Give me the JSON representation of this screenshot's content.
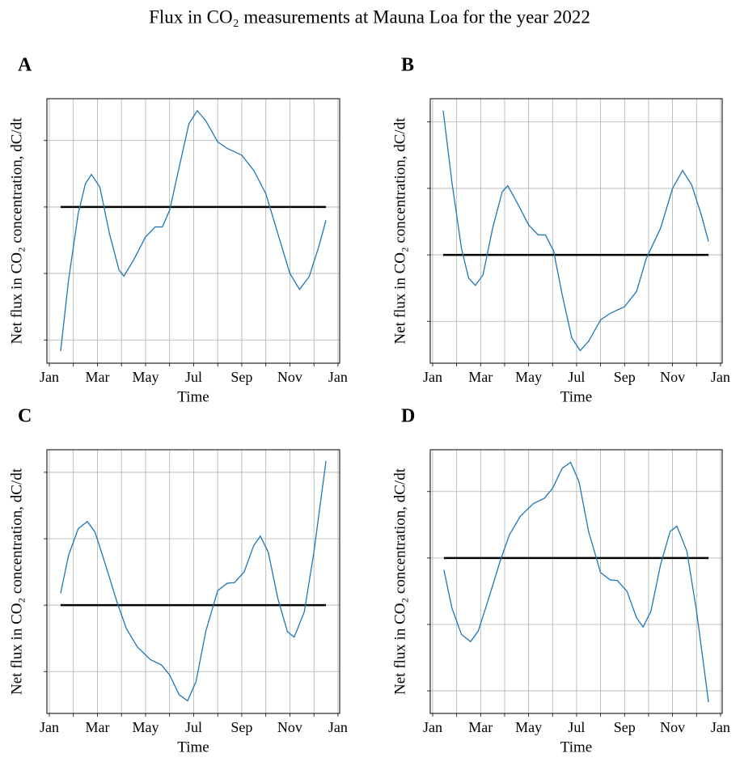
{
  "title": "Flux in CO₂ measurements at Mauna Loa for the year 2022",
  "chart_data": [
    {
      "type": "line",
      "panel": "A",
      "xlabel": "Time",
      "ylabel": "Net flux in CO₂ concentration, dC/dt",
      "xlim": [
        -0.1,
        12.07
      ],
      "ylim": [
        -2.35,
        1.63
      ],
      "yticks": [
        -2,
        -1,
        0,
        1
      ],
      "yticklabels": false,
      "grid": true,
      "xticks": [
        {
          "value": 0,
          "label": "Jan"
        },
        {
          "value": 1,
          "label": null
        },
        {
          "value": 2,
          "label": "Mar"
        },
        {
          "value": 3,
          "label": null
        },
        {
          "value": 4,
          "label": "May"
        },
        {
          "value": 5,
          "label": null
        },
        {
          "value": 6,
          "label": "Jul"
        },
        {
          "value": 7,
          "label": null
        },
        {
          "value": 8,
          "label": "Sep"
        },
        {
          "value": 9,
          "label": null
        },
        {
          "value": 10,
          "label": "Nov"
        },
        {
          "value": 11,
          "label": null
        },
        {
          "value": 12,
          "label": "Jan"
        }
      ],
      "hline": {
        "value": 0,
        "color": "#000000"
      },
      "x": [
        0.47,
        0.8,
        1.2,
        1.5,
        1.75,
        2.1,
        2.5,
        2.9,
        3.1,
        3.5,
        4.0,
        4.4,
        4.7,
        5.0,
        5.4,
        5.8,
        6.15,
        6.5,
        7.0,
        7.4,
        8.0,
        8.5,
        9.0,
        9.5,
        10.0,
        10.4,
        10.8,
        11.2,
        11.5
      ],
      "series": [
        {
          "color": "#1f77b4",
          "values": [
            -2.17,
            -1.1,
            -0.1,
            0.35,
            0.49,
            0.3,
            -0.4,
            -0.95,
            -1.04,
            -0.8,
            -0.45,
            -0.3,
            -0.3,
            -0.05,
            0.6,
            1.25,
            1.45,
            1.3,
            0.98,
            0.88,
            0.78,
            0.55,
            0.2,
            -0.4,
            -1.0,
            -1.24,
            -1.05,
            -0.6,
            -0.2
          ]
        }
      ]
    },
    {
      "type": "line",
      "panel": "B",
      "xlabel": "Time",
      "ylabel": "Net flux in CO₂ concentration, dC/dt",
      "xlim": [
        -0.1,
        12.07
      ],
      "ylim": [
        -1.63,
        2.35
      ],
      "yticks": [
        -1,
        0,
        1,
        2
      ],
      "yticklabels": false,
      "grid": true,
      "xticks": [
        {
          "value": 0,
          "label": "Jan"
        },
        {
          "value": 1,
          "label": null
        },
        {
          "value": 2,
          "label": "Mar"
        },
        {
          "value": 3,
          "label": null
        },
        {
          "value": 4,
          "label": "May"
        },
        {
          "value": 5,
          "label": null
        },
        {
          "value": 6,
          "label": "Jul"
        },
        {
          "value": 7,
          "label": null
        },
        {
          "value": 8,
          "label": "Sep"
        },
        {
          "value": 9,
          "label": null
        },
        {
          "value": 10,
          "label": "Nov"
        },
        {
          "value": 11,
          "label": null
        },
        {
          "value": 12,
          "label": "Jan"
        }
      ],
      "hline": {
        "value": 0,
        "color": "#000000"
      },
      "x": [
        0.44,
        0.8,
        1.2,
        1.5,
        1.78,
        2.1,
        2.5,
        2.9,
        3.13,
        3.5,
        4.0,
        4.4,
        4.7,
        5.04,
        5.4,
        5.8,
        6.15,
        6.5,
        7.0,
        7.4,
        8.0,
        8.5,
        8.9,
        9.5,
        10.0,
        10.42,
        10.8,
        11.2,
        11.5
      ],
      "series": [
        {
          "color": "#1f77b4",
          "values": [
            2.17,
            1.1,
            0.1,
            -0.35,
            -0.46,
            -0.3,
            0.4,
            0.95,
            1.04,
            0.8,
            0.45,
            0.3,
            0.3,
            0.06,
            -0.6,
            -1.25,
            -1.44,
            -1.3,
            -0.98,
            -0.88,
            -0.78,
            -0.55,
            -0.06,
            0.4,
            1.0,
            1.27,
            1.05,
            0.6,
            0.2
          ]
        }
      ]
    },
    {
      "type": "line",
      "panel": "C",
      "xlabel": "Time",
      "ylabel": "Net flux in CO₂ concentration, dC/dt",
      "xlim": [
        -0.1,
        12.07
      ],
      "ylim": [
        -1.63,
        2.34
      ],
      "yticks": [
        -1,
        0,
        1,
        2
      ],
      "yticklabels": false,
      "grid": true,
      "xticks": [
        {
          "value": 0,
          "label": "Jan"
        },
        {
          "value": 1,
          "label": null
        },
        {
          "value": 2,
          "label": "Mar"
        },
        {
          "value": 3,
          "label": null
        },
        {
          "value": 4,
          "label": "May"
        },
        {
          "value": 5,
          "label": null
        },
        {
          "value": 6,
          "label": "Jul"
        },
        {
          "value": 7,
          "label": null
        },
        {
          "value": 8,
          "label": "Sep"
        },
        {
          "value": 9,
          "label": null
        },
        {
          "value": 10,
          "label": "Nov"
        },
        {
          "value": 11,
          "label": null
        },
        {
          "value": 12,
          "label": "Jan"
        }
      ],
      "hline": {
        "value": 0,
        "color": "#000000"
      },
      "x": [
        0.47,
        0.8,
        1.2,
        1.58,
        1.9,
        2.3,
        2.82,
        3.2,
        3.66,
        4.2,
        4.66,
        5.0,
        5.4,
        5.75,
        6.1,
        6.5,
        7.0,
        7.4,
        7.7,
        8.1,
        8.5,
        8.77,
        9.1,
        9.5,
        9.9,
        10.18,
        10.6,
        11.0,
        11.5
      ],
      "series": [
        {
          "color": "#1f77b4",
          "values": [
            0.18,
            0.75,
            1.15,
            1.26,
            1.1,
            0.65,
            0.04,
            -0.35,
            -0.63,
            -0.82,
            -0.9,
            -1.05,
            -1.35,
            -1.44,
            -1.15,
            -0.4,
            0.22,
            0.33,
            0.34,
            0.5,
            0.9,
            1.04,
            0.8,
            0.1,
            -0.4,
            -0.48,
            -0.1,
            0.8,
            2.17
          ]
        }
      ]
    },
    {
      "type": "line",
      "panel": "D",
      "xlabel": "Time",
      "ylabel": "Net flux in CO₂ concentration, dC/dt",
      "xlim": [
        -0.1,
        12.07
      ],
      "ylim": [
        -2.34,
        1.63
      ],
      "yticks": [
        -2,
        -1,
        0,
        1
      ],
      "yticklabels": false,
      "grid": true,
      "xticks": [
        {
          "value": 0,
          "label": "Jan"
        },
        {
          "value": 1,
          "label": null
        },
        {
          "value": 2,
          "label": "Mar"
        },
        {
          "value": 3,
          "label": null
        },
        {
          "value": 4,
          "label": "May"
        },
        {
          "value": 5,
          "label": null
        },
        {
          "value": 6,
          "label": "Jul"
        },
        {
          "value": 7,
          "label": null
        },
        {
          "value": 8,
          "label": "Sep"
        },
        {
          "value": 9,
          "label": null
        },
        {
          "value": 10,
          "label": "Nov"
        },
        {
          "value": 11,
          "label": null
        },
        {
          "value": 12,
          "label": "Jan"
        }
      ],
      "hline": {
        "value": 0,
        "color": "#000000"
      },
      "x": [
        0.47,
        0.8,
        1.2,
        1.58,
        1.9,
        2.3,
        2.82,
        3.2,
        3.66,
        4.2,
        4.66,
        5.0,
        5.4,
        5.75,
        6.1,
        6.5,
        7.0,
        7.4,
        7.7,
        8.1,
        8.5,
        8.77,
        9.1,
        9.5,
        9.9,
        10.18,
        10.6,
        11.0,
        11.5
      ],
      "series": [
        {
          "color": "#1f77b4",
          "values": [
            -0.18,
            -0.75,
            -1.15,
            -1.26,
            -1.1,
            -0.65,
            -0.04,
            0.35,
            0.63,
            0.82,
            0.9,
            1.05,
            1.35,
            1.44,
            1.15,
            0.4,
            -0.22,
            -0.33,
            -0.34,
            -0.5,
            -0.9,
            -1.04,
            -0.8,
            -0.1,
            0.4,
            0.48,
            0.1,
            -0.8,
            -2.17
          ]
        }
      ]
    }
  ]
}
